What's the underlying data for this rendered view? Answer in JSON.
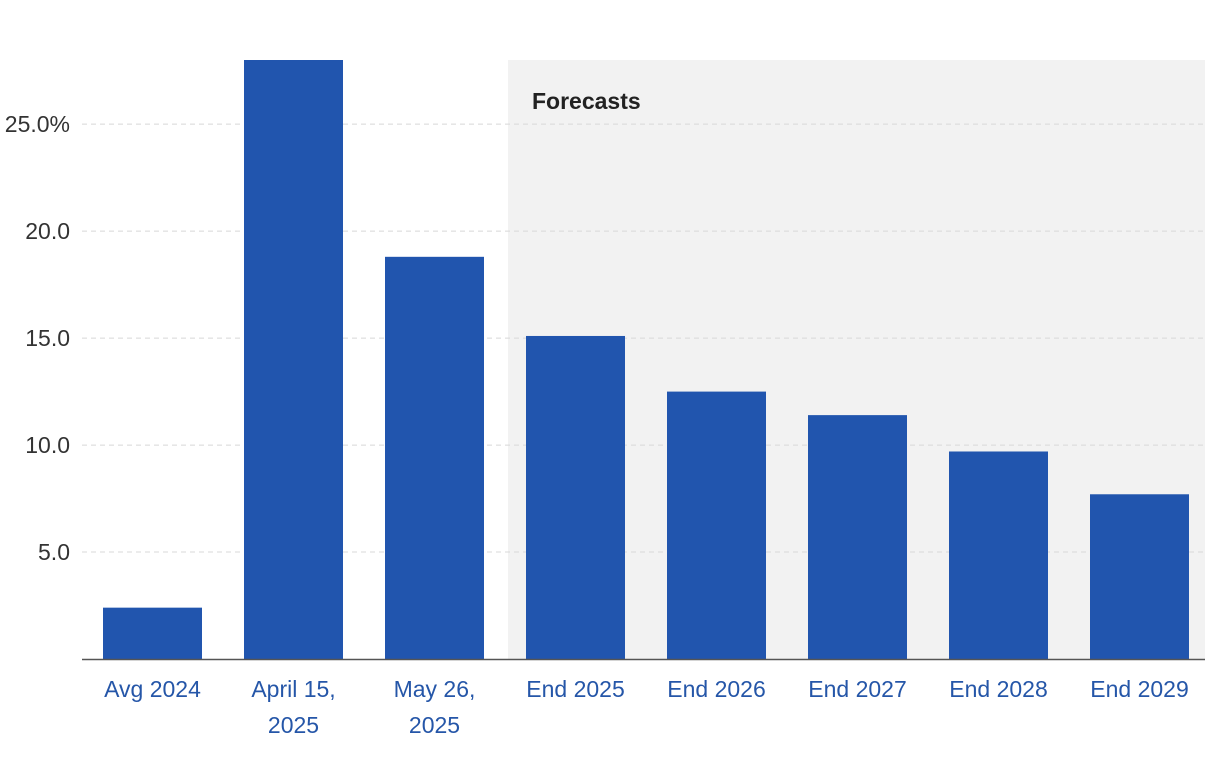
{
  "colors": {
    "bar": "#2155ae",
    "forecast_band": "#f2f2f2",
    "gridline": "#d8d8d8",
    "axis": "#555555",
    "category_text": "#2556a8"
  },
  "chart_data": {
    "type": "bar",
    "title": "",
    "xlabel": "",
    "ylabel": "",
    "categories": [
      [
        "Avg 2024"
      ],
      [
        "April 15,",
        "2025"
      ],
      [
        "May 26,",
        "2025"
      ],
      [
        "End 2025"
      ],
      [
        "End 2026"
      ],
      [
        "End 2027"
      ],
      [
        "End 2028"
      ],
      [
        "End 2029"
      ]
    ],
    "values": [
      2.4,
      28.0,
      18.8,
      15.1,
      12.5,
      11.4,
      9.7,
      7.7
    ],
    "ylim": [
      0,
      28
    ],
    "yticks": [
      5,
      10,
      15,
      20,
      25
    ],
    "ytick_labels": [
      "5.0",
      "10.0",
      "15.0",
      "20.0",
      "25.0%"
    ],
    "grid": "horizontal-dashed",
    "forecast": {
      "label": "Forecasts",
      "start_category_index": 3
    }
  }
}
